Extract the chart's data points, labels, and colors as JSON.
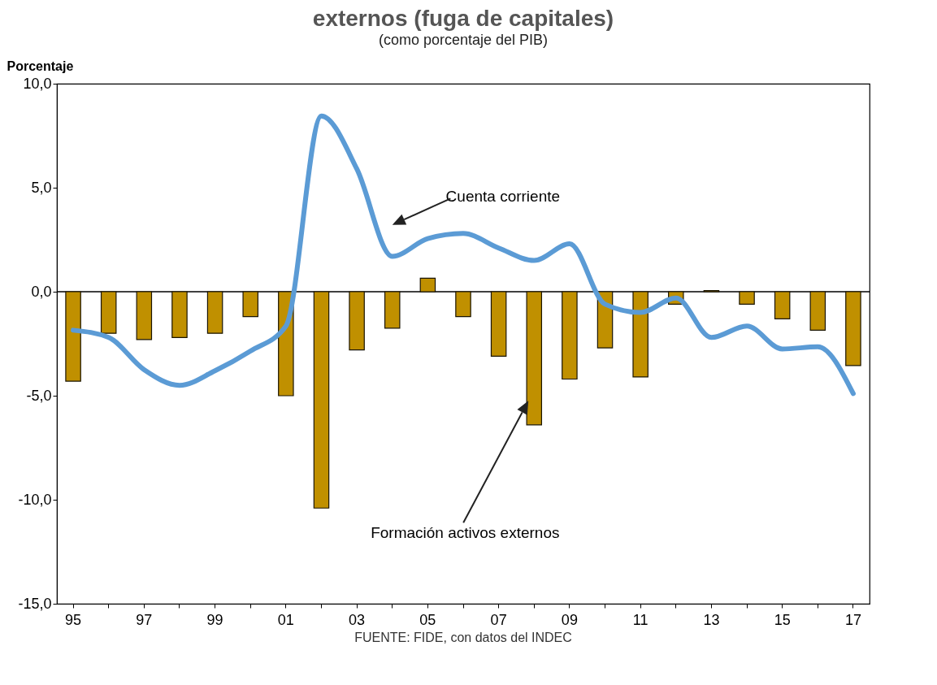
{
  "chart_data": {
    "type": "bar",
    "title": "externos (fuga de capitales)",
    "subtitle": "(como porcentaje del PIB)",
    "ylabel": "Porcentaje",
    "categories": [
      "95",
      null,
      "97",
      null,
      "99",
      null,
      "01",
      null,
      "03",
      null,
      "05",
      null,
      "07",
      null,
      "09",
      null,
      "11",
      null,
      "13",
      null,
      "15",
      null,
      "17"
    ],
    "series": [
      {
        "name": "Formación  activos  externos",
        "color": "#c09000",
        "values": [
          -4.3,
          -2.0,
          -2.3,
          -2.2,
          -2.0,
          -1.2,
          -5.0,
          -10.4,
          -2.8,
          -1.75,
          0.65,
          -1.2,
          -3.1,
          -6.4,
          -4.2,
          -2.7,
          -4.1,
          -0.6,
          0.05,
          -0.6,
          -1.3,
          -1.85,
          -3.55
        ]
      },
      {
        "name": "Cuenta corriente",
        "type": "line",
        "color": "#5b9bd5",
        "values": [
          -1.85,
          -2.2,
          -3.75,
          -4.5,
          -3.8,
          -2.85,
          -1.65,
          8.45,
          5.9,
          1.7,
          2.55,
          2.8,
          2.1,
          1.5,
          2.3,
          -0.6,
          -1.0,
          -0.3,
          -2.2,
          -1.65,
          -2.75,
          -2.65,
          -4.9
        ]
      }
    ],
    "ylim": [
      -15,
      10
    ],
    "yticks": [
      {
        "value": -15,
        "label": "-15,0"
      },
      {
        "value": -10,
        "label": "-10,0"
      },
      {
        "value": -5,
        "label": "-5,0"
      },
      {
        "value": 0,
        "label": "0,0"
      },
      {
        "value": 5,
        "label": "5,0"
      },
      {
        "value": 10,
        "label": "10,0"
      }
    ],
    "ref_lines": [
      {
        "axis": "y",
        "value": 0,
        "color": "#000000"
      }
    ],
    "annotations": [
      "FUENTE: FIDE, con datos del INDEC"
    ],
    "grid": false,
    "line_style": "solid",
    "marker": "none"
  }
}
